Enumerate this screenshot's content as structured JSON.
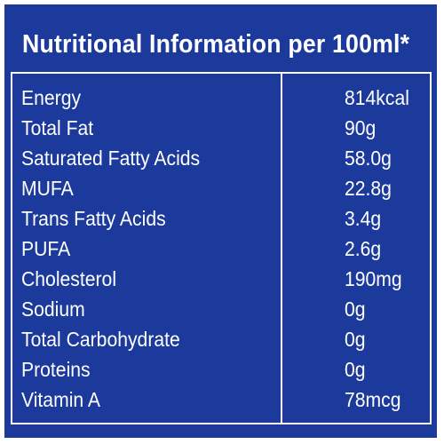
{
  "title": "Nutritional Information per 100ml*",
  "colors": {
    "background": "#1b3a9c",
    "text": "#ffffff",
    "border": "#ffffff"
  },
  "rows": [
    {
      "name": "Energy",
      "value": "814kcal"
    },
    {
      "name": "Total Fat",
      "value": "90g"
    },
    {
      "name": "Saturated Fatty Acids",
      "value": "58.0g"
    },
    {
      "name": "MUFA",
      "value": "22.8g"
    },
    {
      "name": "Trans Fatty Acids",
      "value": "3.4g"
    },
    {
      "name": "PUFA",
      "value": "2.6g"
    },
    {
      "name": "Cholesterol",
      "value": "190mg"
    },
    {
      "name": "Sodium",
      "value": "0g"
    },
    {
      "name": "Total Carbohydrate",
      "value": "0g"
    },
    {
      "name": "Proteins",
      "value": "0g"
    },
    {
      "name": "Vitamin A",
      "value": "78mcg"
    }
  ]
}
